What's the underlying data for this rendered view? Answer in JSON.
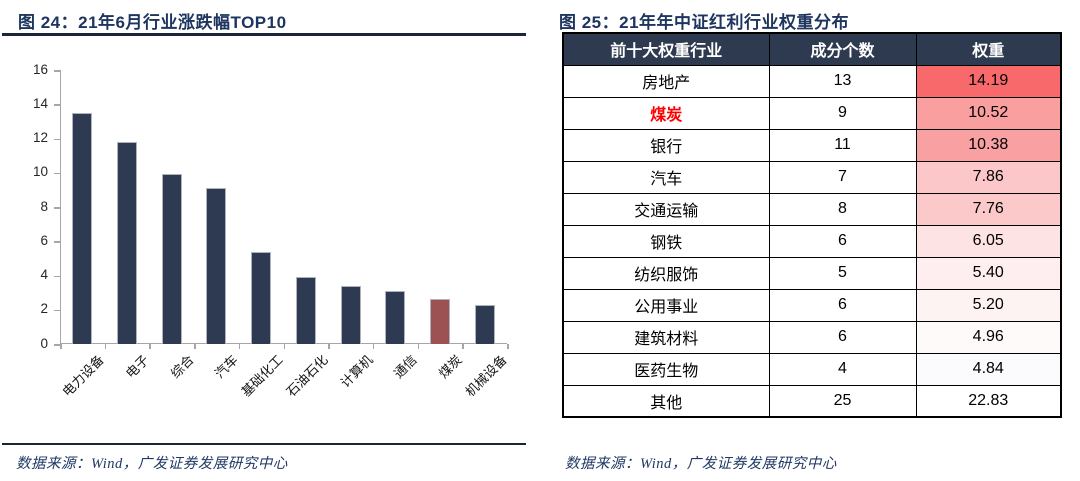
{
  "left_figure": {
    "title": "图 24：21年6月行业涨跌幅TOP10",
    "source": "数据来源：Wind，广发证券发展研究中心"
  },
  "right_figure": {
    "title": "图 25：21年年中证红利行业权重分布",
    "source": "数据来源：Wind，广发证券发展研究中心"
  },
  "colors": {
    "title_navy": "#1E3560",
    "rule_dark": "#1B2438",
    "bar_navy": "#2D3A52",
    "bar_red": "#9C5152",
    "axis_gray": "#A6A6A6",
    "table_header_bg": "#2E3A4F",
    "highlight_text_red": "#FF0000"
  },
  "chart_data": [
    {
      "type": "bar",
      "title": "21年6月行业涨跌幅TOP10",
      "categories": [
        "电力设备",
        "电子",
        "综合",
        "汽车",
        "基础化工",
        "石油石化",
        "计算机",
        "通信",
        "煤炭",
        "机械设备"
      ],
      "values": [
        13.5,
        11.8,
        9.9,
        9.1,
        5.4,
        3.9,
        3.4,
        3.1,
        2.6,
        2.3
      ],
      "highlight_category": "煤炭",
      "bar_color": "#2D3A52",
      "highlight_color": "#9C5152",
      "xlabel": "",
      "ylabel": "",
      "ylim": [
        0,
        16
      ],
      "yticks": [
        0,
        2,
        4,
        6,
        8,
        10,
        12,
        14,
        16
      ],
      "grid": false,
      "legend": false
    },
    {
      "type": "table",
      "title": "21年年中证红利行业权重分布",
      "columns": [
        "前十大权重行业",
        "成分个数",
        "权重"
      ],
      "rows": [
        {
          "industry": "房地产",
          "count": "13",
          "weight": "14.19",
          "weight_bg": "#F8696B",
          "highlight": false
        },
        {
          "industry": "煤炭",
          "count": "9",
          "weight": "10.52",
          "weight_bg": "#F99FA0",
          "highlight": true
        },
        {
          "industry": "银行",
          "count": "11",
          "weight": "10.38",
          "weight_bg": "#F9A1A2",
          "highlight": false
        },
        {
          "industry": "汽车",
          "count": "7",
          "weight": "7.86",
          "weight_bg": "#FBC7C9",
          "highlight": false
        },
        {
          "industry": "交通运输",
          "count": "8",
          "weight": "7.76",
          "weight_bg": "#FBC9CA",
          "highlight": false
        },
        {
          "industry": "钢铁",
          "count": "6",
          "weight": "6.05",
          "weight_bg": "#FDE3E4",
          "highlight": false
        },
        {
          "industry": "纺织服饰",
          "count": "5",
          "weight": "5.40",
          "weight_bg": "#FEEEEF",
          "highlight": false
        },
        {
          "industry": "公用事业",
          "count": "6",
          "weight": "5.20",
          "weight_bg": "#FEF3F3",
          "highlight": false
        },
        {
          "industry": "建筑材料",
          "count": "6",
          "weight": "4.96",
          "weight_bg": "#FFFAFA",
          "highlight": false
        },
        {
          "industry": "医药生物",
          "count": "4",
          "weight": "4.84",
          "weight_bg": "#FBFBFE",
          "highlight": false
        },
        {
          "industry": "其他",
          "count": "25",
          "weight": "22.83",
          "weight_bg": "#FFFFFF",
          "highlight": false
        }
      ]
    }
  ]
}
